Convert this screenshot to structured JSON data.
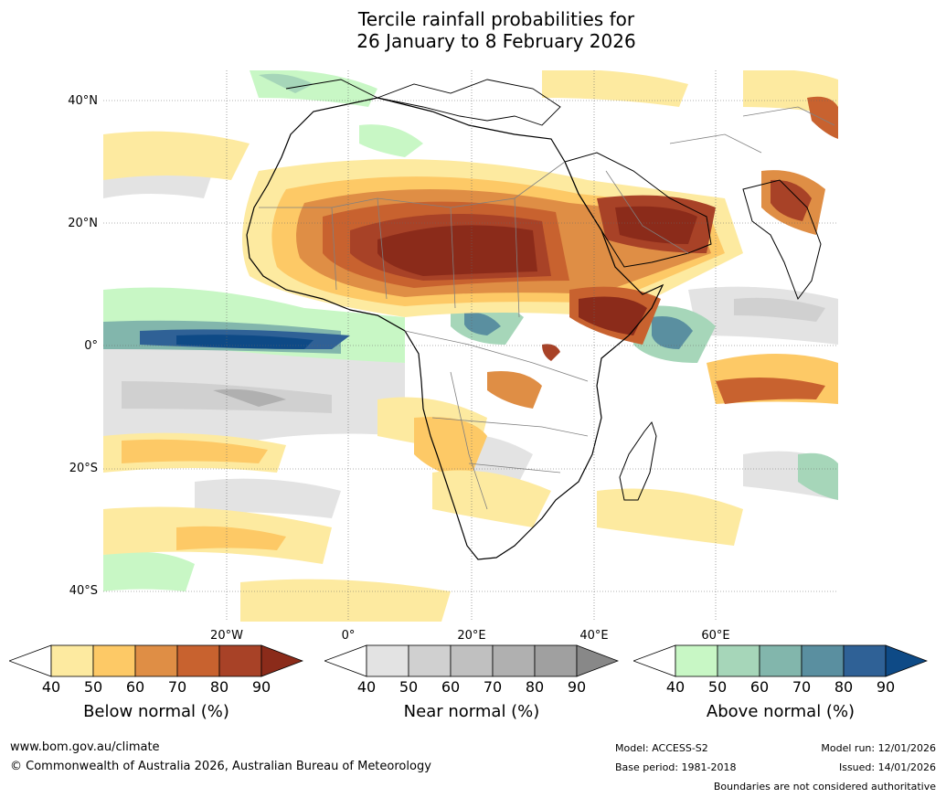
{
  "title": {
    "line1": "Tercile rainfall probabilities for",
    "line2": "26 January to 8 February 2026"
  },
  "map": {
    "lat_labels": [
      "40°N",
      "20°N",
      "0°",
      "20°S",
      "40°S"
    ],
    "lon_labels": [
      "20°W",
      "0°",
      "20°E",
      "40°E",
      "60°E"
    ],
    "colors": {
      "below": [
        "#fdeaa0",
        "#fdc966",
        "#df8e45",
        "#c8622f",
        "#a84227",
        "#8b2b1a"
      ],
      "near": [
        "#e3e3e3",
        "#d0d0d0",
        "#c0c0c0",
        "#b0b0b0",
        "#a0a0a0",
        "#888888"
      ],
      "above": [
        "#c8f7c5",
        "#a6d6b9",
        "#82b6ac",
        "#5a8fa0",
        "#2f6196",
        "#0e4a86"
      ],
      "land_boundary": "#000000",
      "country_boundary": "#808080"
    }
  },
  "colorbars": [
    {
      "title": "Below normal (%)",
      "ticks": [
        "40",
        "50",
        "60",
        "70",
        "80",
        "90"
      ]
    },
    {
      "title": "Near normal (%)",
      "ticks": [
        "40",
        "50",
        "60",
        "70",
        "80",
        "90"
      ]
    },
    {
      "title": "Above normal (%)",
      "ticks": [
        "40",
        "50",
        "60",
        "70",
        "80",
        "90"
      ]
    }
  ],
  "footer": {
    "website": "www.bom.gov.au/climate",
    "copyright": "© Commonwealth of Australia 2026, Australian Bureau of Meteorology",
    "model": "Model: ACCESS-S2",
    "base_period": "Base period: 1981-2018",
    "model_run": "Model run: 12/01/2026",
    "issued": "Issued: 14/01/2026",
    "disclaimer": "Boundaries are not considered authoritative"
  }
}
